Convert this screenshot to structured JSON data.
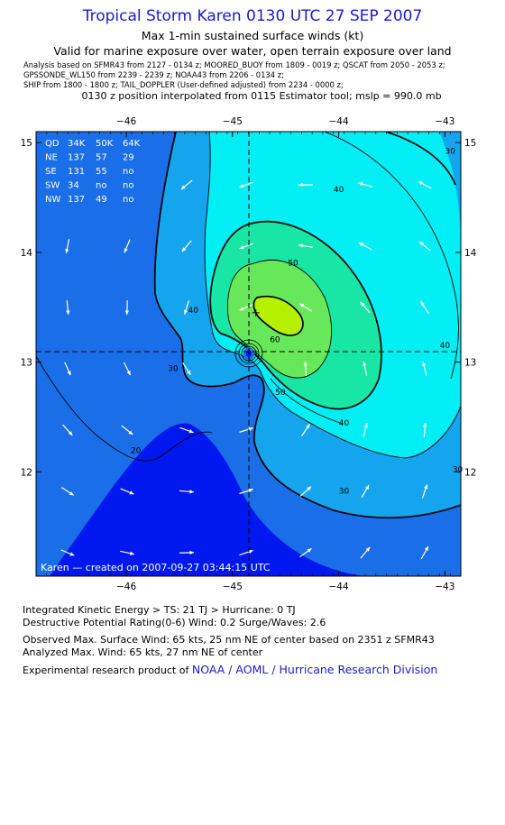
{
  "header": {
    "title": "Tropical Storm Karen 0130 UTC 27 SEP 2007",
    "subtitle": "Max 1-min sustained surface winds (kt)",
    "valid_line": "Valid for marine exposure over water, open terrain exposure over land",
    "analysis_lines": [
      "Analysis based on   SFMR43 from 2127 - 0134 z;  MOORED_BUOY from 1809 - 0019 z;  QSCAT from 2050 - 2053 z;",
      "GPSSONDE_WL150 from 2239 - 2239 z;  NOAA43 from 2206 - 0134 z;",
      "SHIP from 1800 - 1800 z;  TAIL_DOPPLER (User-defined adjusted) from 2234 - 0000 z;"
    ],
    "position_line": "0130 z position interpolated from 0115 Estimator tool; mslp = 990.0 mb"
  },
  "chart_data": {
    "type": "contour",
    "xlim": [
      -46.85,
      -42.85
    ],
    "ylim": [
      11.05,
      15.1
    ],
    "x_ticks": [
      -46,
      -45,
      -44,
      -43
    ],
    "y_ticks": [
      12,
      13,
      14,
      15
    ],
    "storm_center": {
      "lon": -44.9,
      "lat": 13.03
    },
    "max_wind_marker": {
      "lon": -44.78,
      "lat": 13.45
    },
    "contour_labels": [
      {
        "text": "30",
        "lon": -42.95,
        "lat": 14.9
      },
      {
        "text": "40",
        "lon": -44.0,
        "lat": 14.55
      },
      {
        "text": "50",
        "lon": -44.43,
        "lat": 13.88
      },
      {
        "text": "40",
        "lon": -45.37,
        "lat": 13.45
      },
      {
        "text": "60",
        "lon": -44.6,
        "lat": 13.18
      },
      {
        "text": "30",
        "lon": -45.56,
        "lat": 12.92
      },
      {
        "text": "50",
        "lon": -44.55,
        "lat": 12.7
      },
      {
        "text": "40",
        "lon": -43.95,
        "lat": 12.42
      },
      {
        "text": "40",
        "lon": -43.0,
        "lat": 13.13
      },
      {
        "text": "20",
        "lon": -45.91,
        "lat": 12.17
      },
      {
        "text": "30",
        "lon": -43.95,
        "lat": 11.8
      },
      {
        "text": "30",
        "lon": -42.88,
        "lat": 12.0
      }
    ],
    "wind_radii_table": {
      "title": "WIND RADII (NM)",
      "header": [
        "QD",
        "34K",
        "50K",
        "64K"
      ],
      "rows": [
        [
          "NE",
          "137",
          "57",
          "29"
        ],
        [
          "SE",
          "131",
          "55",
          "no"
        ],
        [
          "SW",
          "34",
          "no",
          "no"
        ],
        [
          "NW",
          "137",
          "49",
          "no"
        ]
      ]
    },
    "credit": "Karen  —  created on 2007-09-27 03:44:15 UTC",
    "colors": {
      "band_lt20": "#0018f0",
      "band_20_30": "#1a6ee8",
      "band_30_40": "#15a4ee",
      "band_40_50": "#00eef4",
      "band_50_60": "#18e6a4",
      "band_60_64": "#66e85a",
      "band_ge64": "#b4f000",
      "contour": "#000000",
      "arrow": "#ffffff"
    }
  },
  "footer": {
    "ike": "Integrated Kinetic Energy > TS: 21 TJ   > Hurricane: 0 TJ",
    "dpr": "Destructive Potential Rating(0-6)   Wind: 0.2 Surge/Waves: 2.6",
    "observed": "Observed Max. Surface Wind: 65 kts, 25 nm NE of center based on 2351 z SFMR43",
    "analyzed": "Analyzed Max. Wind: 65 kts, 27 nm NE of center",
    "experimental": "Experimental research product of ",
    "org": "NOAA / AOML / Hurricane Research Division"
  }
}
